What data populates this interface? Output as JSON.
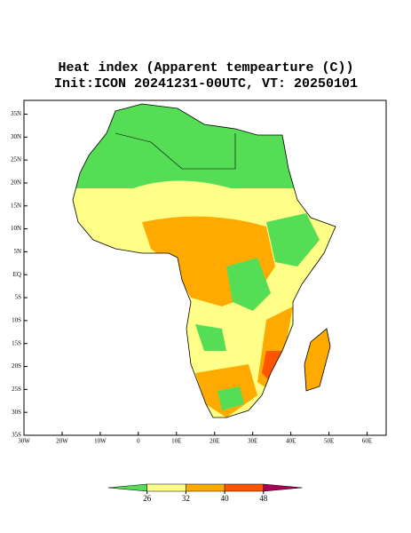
{
  "title": [
    "Heat index (Apparent tempearture (C))",
    "Init:ICON 20241231-00UTC, VT: 20250101"
  ],
  "map": {
    "lon_range": [
      -30,
      65
    ],
    "lat_range": [
      -35,
      38
    ],
    "lon_ticks": [
      {
        "value": -30,
        "label": "30W"
      },
      {
        "value": -20,
        "label": "20W"
      },
      {
        "value": -10,
        "label": "10W"
      },
      0,
      {
        "value": 10,
        "label": "10E"
      },
      {
        "value": 20,
        "label": "20E"
      },
      {
        "value": 30,
        "label": "30E"
      },
      {
        "value": 40,
        "label": "40E"
      },
      {
        "value": 50,
        "label": "50E"
      },
      {
        "value": 60,
        "label": "60E"
      }
    ],
    "lat_ticks": [
      {
        "value": 35,
        "label": "35N"
      },
      {
        "value": 30,
        "label": "30N"
      },
      {
        "value": 25,
        "label": "25N"
      },
      {
        "value": 20,
        "label": "20N"
      },
      {
        "value": 15,
        "label": "15N"
      },
      {
        "value": 10,
        "label": "10N"
      },
      {
        "value": 5,
        "label": "5N"
      },
      {
        "value": 0,
        "label": "EQ"
      },
      {
        "value": -5,
        "label": "5S"
      },
      {
        "value": -10,
        "label": "10S"
      },
      {
        "value": -15,
        "label": "15S"
      },
      {
        "value": -20,
        "label": "20S"
      },
      {
        "value": -25,
        "label": "25S"
      },
      {
        "value": -30,
        "label": "30S"
      },
      {
        "value": -35,
        "label": "35S"
      }
    ]
  },
  "colorbar": {
    "ticks": [
      26,
      32,
      40,
      48
    ],
    "colors": [
      "#55dd55",
      "#ffff88",
      "#ffaa00",
      "#ff5500",
      "#aa0055"
    ]
  }
}
